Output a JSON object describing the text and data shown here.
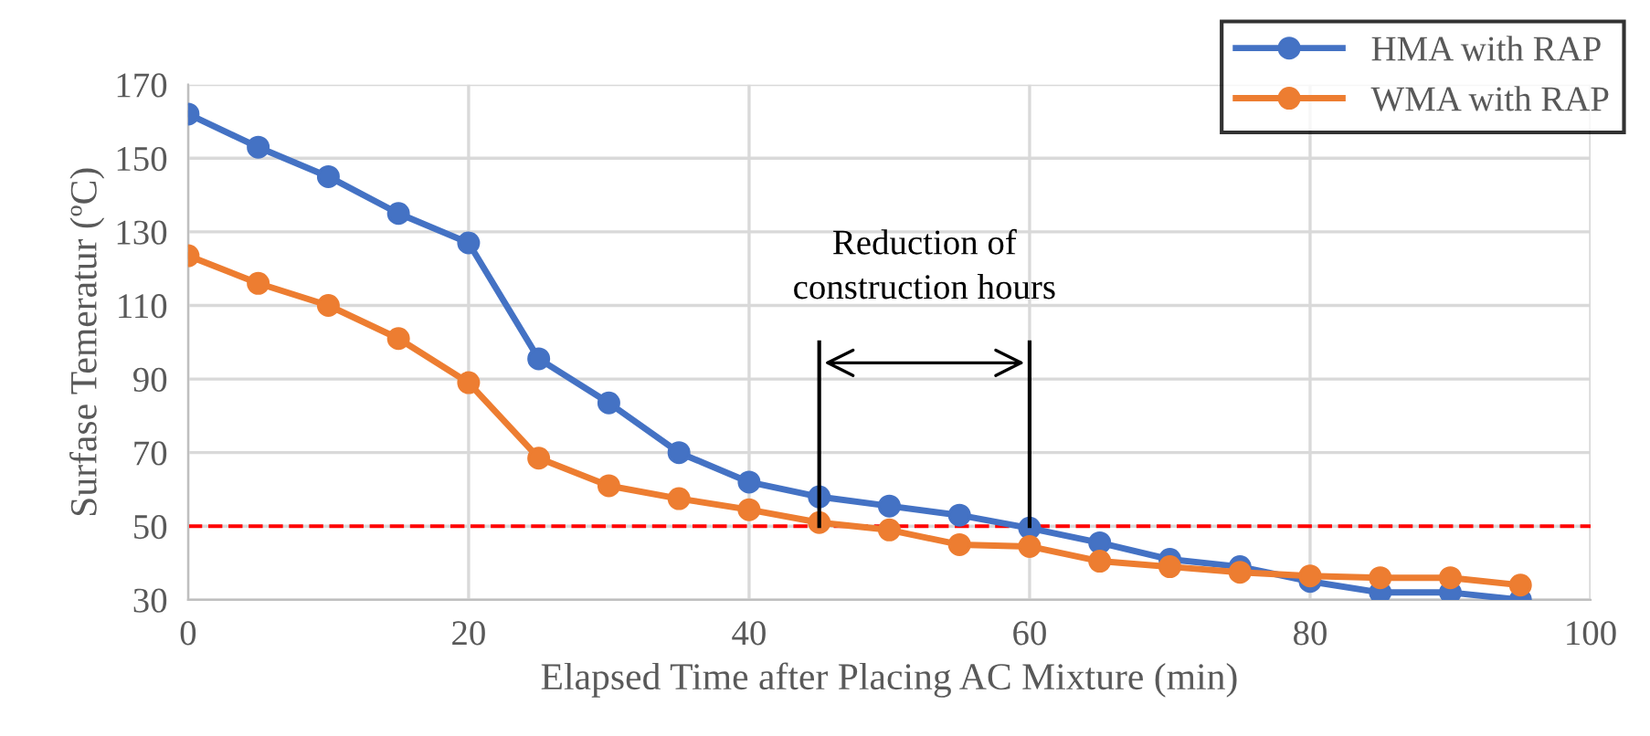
{
  "chart_data": {
    "type": "line",
    "xlabel": "Elapsed Time after Placing AC Mixture (min)",
    "ylabel": "Surfase Temeratur (ºC)",
    "x": [
      0,
      5,
      10,
      15,
      20,
      25,
      30,
      35,
      40,
      45,
      50,
      55,
      60,
      65,
      70,
      75,
      80,
      85,
      90,
      95
    ],
    "series": [
      {
        "name": "HMA with RAP",
        "color": "#4472c4",
        "values": [
          162,
          153,
          145,
          135,
          127,
          95.5,
          83.5,
          70,
          62,
          58,
          55.5,
          53,
          49.5,
          45.5,
          41,
          39,
          35,
          32,
          32,
          30
        ]
      },
      {
        "name": "WMA with RAP",
        "color": "#ed7d31",
        "values": [
          123.5,
          116,
          110,
          101,
          89,
          68.5,
          61,
          57.5,
          54.5,
          51,
          49,
          45,
          44.5,
          40.5,
          39,
          37.5,
          36.5,
          36,
          36,
          34
        ]
      }
    ],
    "xlim": [
      0,
      100
    ],
    "xticks": [
      0,
      20,
      40,
      60,
      80,
      100
    ],
    "ylim": [
      30,
      170
    ],
    "yticks": [
      30,
      50,
      70,
      90,
      110,
      130,
      150,
      170
    ],
    "ref_lines": [
      {
        "axis": "y",
        "value": 50,
        "color": "#ff0000",
        "line_style": "dashed"
      }
    ],
    "annotations": [
      {
        "text": "Reduction of\nconstruction hours",
        "x": 45,
        "y": 50
      }
    ],
    "grid": true,
    "legend": "top right",
    "marker": "circle",
    "line_style": "solid"
  }
}
